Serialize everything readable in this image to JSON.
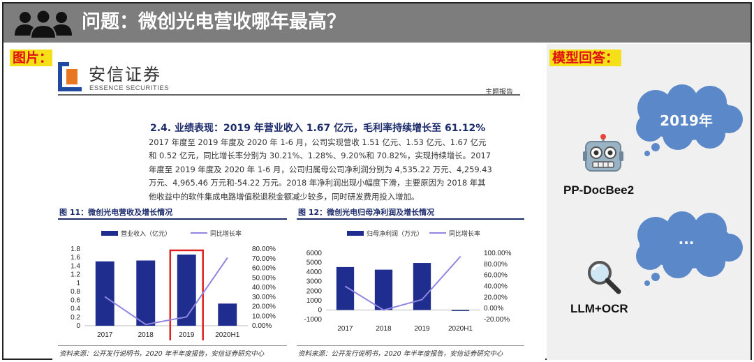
{
  "header": {
    "title": "问题：微创光电营收哪年最高？"
  },
  "labels": {
    "image": "图片：",
    "answer": "模型回答："
  },
  "doc": {
    "logo_cn": "安信证券",
    "logo_en": "ESSENCE SECURITIES",
    "report_tag": "主题报告",
    "section_title": "2.4. 业绩表现：2019 年营业收入 1.67 亿元，毛利率持续增长至 61.12%",
    "paragraph_lines": [
      "2017 年度至 2019 年度及 2020 年 1-6 月，公司实现营收 1.51 亿元、1.53 亿元、1.67 亿元",
      "和 0.52 亿元，同比增长率分别为 30.21%、1.28%、9.20%和 70.82%，实现持续增长。2017",
      "年度至 2019 年度及 2020 年 1-6 月，公司归属母公司净利润分别为 4,535.22 万元、4,259.43",
      "万元、4,965.46 万元和-54.22 万元。2018 年净利润出现小幅度下滑，主要原因为 2018 年其",
      "他收益中的软件集成电路增值税退税金额减少较多，同时研发费用投入增加。"
    ],
    "fig11_caption": "图 11：微创光电营收及增长情况",
    "fig12_caption": "图 12：微创光电归母净利润及增长情况",
    "source_left": "资料来源：公开发行说明书，2020 年半年度报告，安信证券研究中心",
    "source_right": "资料来源：公开发行说明书，2020 年半年度报告，安信证券研究中心"
  },
  "chart_data": [
    {
      "type": "bar",
      "title": "图 11：微创光电营收及增长情况",
      "categories": [
        "2017",
        "2018",
        "2019",
        "2020H1"
      ],
      "series": [
        {
          "name": "营业收入（亿元）",
          "type": "bar",
          "axis": "left",
          "values": [
            1.51,
            1.53,
            1.67,
            0.52
          ]
        },
        {
          "name": "同比增长率",
          "type": "line",
          "axis": "right",
          "values": [
            30.21,
            1.28,
            9.2,
            70.82
          ]
        }
      ],
      "ylim_left": [
        0,
        1.8
      ],
      "yticks_left": [
        "1.8",
        "1.6",
        "1.4",
        "1.2",
        "1",
        "0.8",
        "0.6",
        "0.4",
        "0.2",
        "0"
      ],
      "ylim_right": [
        0,
        80
      ],
      "yticks_right": [
        "80.00%",
        "70.00%",
        "60.00%",
        "50.00%",
        "40.00%",
        "30.00%",
        "20.00%",
        "10.00%",
        "0.00%"
      ],
      "highlight": "2019",
      "legend": "top"
    },
    {
      "type": "bar",
      "title": "图 12：微创光电归母净利润及增长情况",
      "categories": [
        "2017",
        "2018",
        "2019",
        "2020H1"
      ],
      "series": [
        {
          "name": "归母净利润（万元）",
          "type": "bar",
          "axis": "left",
          "values": [
            4535.22,
            4259.43,
            4965.46,
            -54.22
          ]
        },
        {
          "name": "同比增长率",
          "type": "line",
          "axis": "right",
          "values": [
            40,
            -3,
            16,
            94
          ]
        }
      ],
      "ylim_left": [
        -1000,
        6000
      ],
      "yticks_left": [
        "6000",
        "5000",
        "4000",
        "3000",
        "2000",
        "1000",
        "0",
        "-1000"
      ],
      "ylim_right": [
        -20,
        100
      ],
      "yticks_right": [
        "100.00%",
        "80.00%",
        "60.00%",
        "40.00%",
        "20.00%",
        "0.00%",
        "-20.00%"
      ],
      "legend": "top"
    }
  ],
  "answers": [
    {
      "model": "PP-DocBee2",
      "icon": "robot-icon",
      "reply": "2019年"
    },
    {
      "model": "LLM+OCR",
      "icon": "magnifier-icon",
      "reply": "..."
    }
  ],
  "colors": {
    "bar": "#1f2d8f",
    "line": "#8f86e0",
    "header": "#7d7d7d",
    "highlight": "#e02020",
    "cloud": "#5b88c9"
  }
}
